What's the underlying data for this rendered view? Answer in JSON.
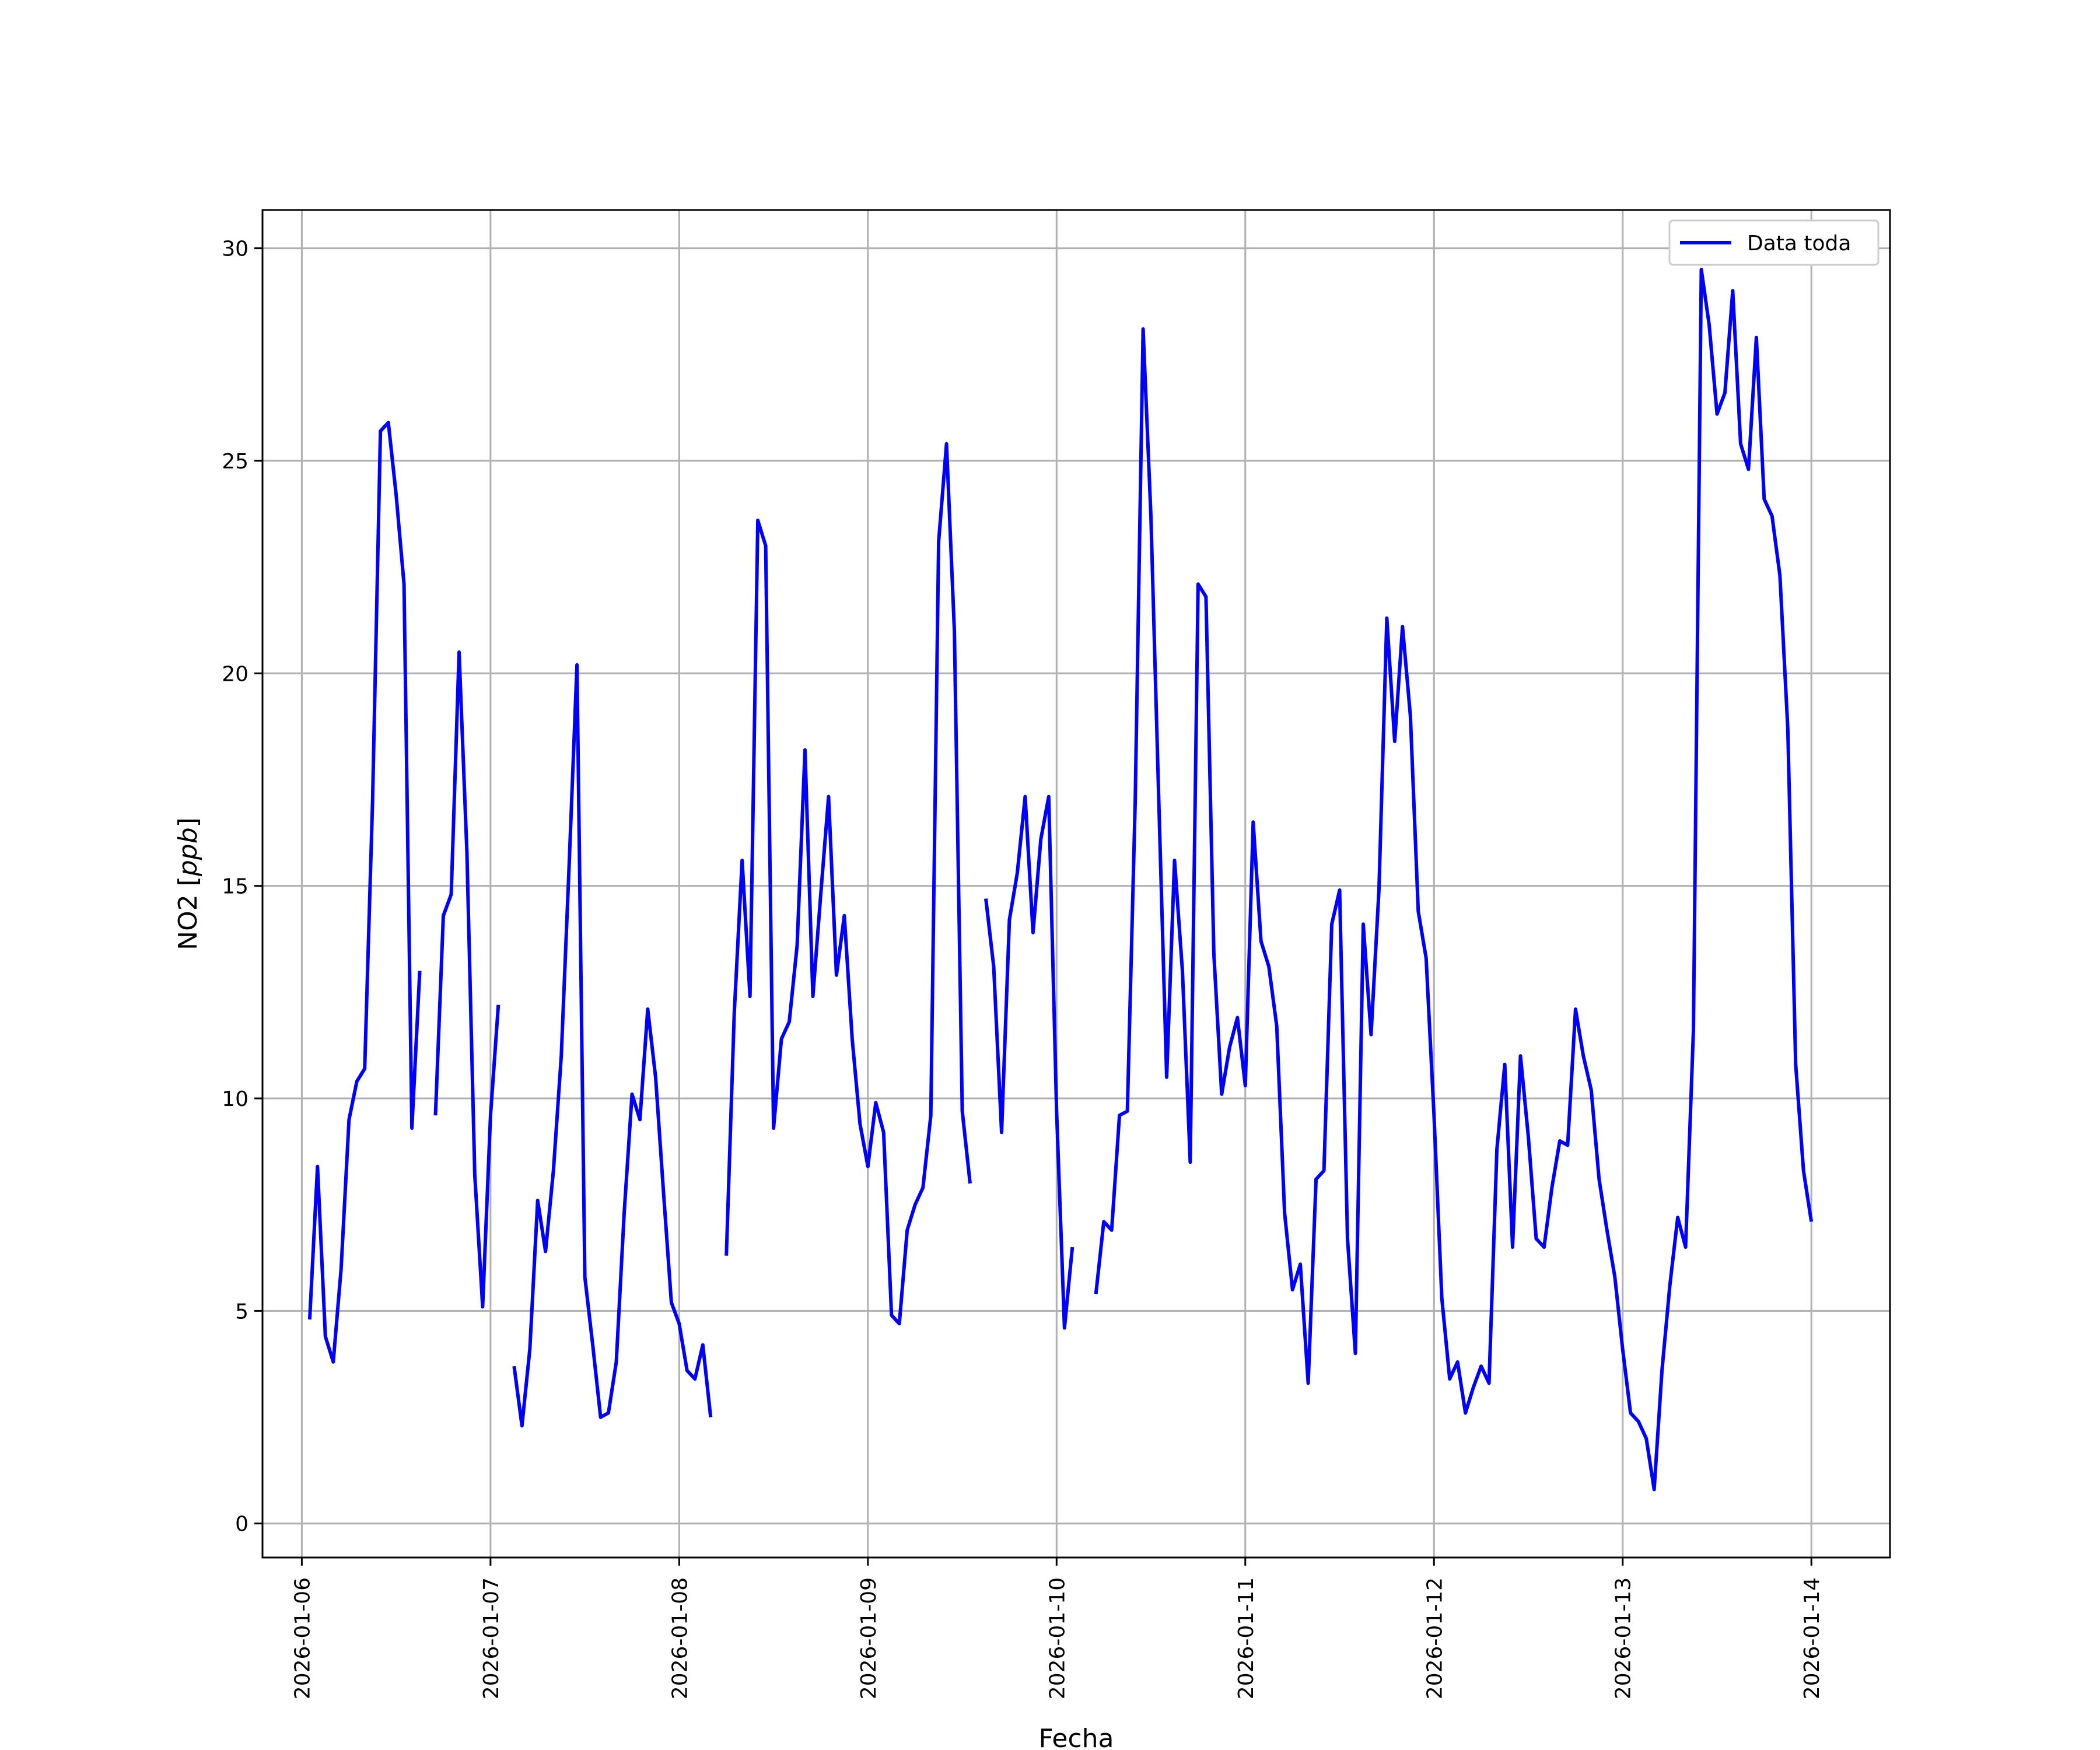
{
  "chart_data": {
    "type": "line",
    "xlabel": "Fecha",
    "ylabel_main": "NO2 [",
    "ylabel_unit": "ppb",
    "ylabel_close": "]",
    "ylim": [
      -0.8,
      30.9
    ],
    "yticks": [
      0,
      5,
      10,
      15,
      20,
      25,
      30
    ],
    "ytick_labels": [
      "0",
      "5",
      "10",
      "15",
      "20",
      "25",
      "30"
    ],
    "xlim": [
      "2026-01-05T19:00",
      "2026-01-14T10:00"
    ],
    "xticks": [
      "2026-01-06",
      "2026-01-07",
      "2026-01-08",
      "2026-01-09",
      "2026-01-10",
      "2026-01-11",
      "2026-01-12",
      "2026-01-13",
      "2026-01-14"
    ],
    "grid": true,
    "legend_position": "top-right",
    "series": [
      {
        "name": "Data toda",
        "color": "#0000ff",
        "segments": [
          [
            [
              "2026-01-06T01:00",
              4.8
            ],
            [
              "2026-01-06T02:00",
              8.4
            ],
            [
              "2026-01-06T03:00",
              4.4
            ],
            [
              "2026-01-06T04:00",
              3.8
            ],
            [
              "2026-01-06T05:00",
              6.0
            ],
            [
              "2026-01-06T06:00",
              9.5
            ],
            [
              "2026-01-06T07:00",
              10.4
            ],
            [
              "2026-01-06T08:00",
              10.7
            ],
            [
              "2026-01-06T09:00",
              17.0
            ],
            [
              "2026-01-06T10:00",
              25.7
            ],
            [
              "2026-01-06T11:00",
              25.9
            ],
            [
              "2026-01-06T12:00",
              24.2
            ],
            [
              "2026-01-06T13:00",
              22.1
            ],
            [
              "2026-01-06T14:00",
              9.3
            ],
            [
              "2026-01-06T15:00",
              13.0
            ]
          ],
          [
            [
              "2026-01-06T17:00",
              9.6
            ],
            [
              "2026-01-06T18:00",
              14.3
            ],
            [
              "2026-01-06T19:00",
              14.8
            ],
            [
              "2026-01-06T20:00",
              20.5
            ],
            [
              "2026-01-06T21:00",
              15.8
            ],
            [
              "2026-01-06T22:00",
              8.2
            ],
            [
              "2026-01-06T23:00",
              5.1
            ],
            [
              "2026-01-07T00:00",
              9.6
            ],
            [
              "2026-01-07T01:00",
              12.2
            ]
          ],
          [
            [
              "2026-01-07T03:00",
              3.7
            ],
            [
              "2026-01-07T04:00",
              2.3
            ],
            [
              "2026-01-07T05:00",
              4.1
            ],
            [
              "2026-01-07T06:00",
              7.6
            ],
            [
              "2026-01-07T07:00",
              6.4
            ],
            [
              "2026-01-07T08:00",
              8.3
            ],
            [
              "2026-01-07T09:00",
              11.0
            ],
            [
              "2026-01-07T10:00",
              15.5
            ],
            [
              "2026-01-07T11:00",
              20.2
            ],
            [
              "2026-01-07T12:00",
              5.8
            ],
            [
              "2026-01-07T13:00",
              4.2
            ],
            [
              "2026-01-07T14:00",
              2.5
            ],
            [
              "2026-01-07T15:00",
              2.6
            ],
            [
              "2026-01-07T16:00",
              3.8
            ],
            [
              "2026-01-07T17:00",
              7.3
            ],
            [
              "2026-01-07T18:00",
              10.1
            ],
            [
              "2026-01-07T19:00",
              9.5
            ],
            [
              "2026-01-07T20:00",
              12.1
            ],
            [
              "2026-01-07T21:00",
              10.5
            ],
            [
              "2026-01-07T22:00",
              7.8
            ],
            [
              "2026-01-07T23:00",
              5.2
            ],
            [
              "2026-01-08T00:00",
              4.7
            ],
            [
              "2026-01-08T01:00",
              3.6
            ],
            [
              "2026-01-08T02:00",
              3.4
            ],
            [
              "2026-01-08T03:00",
              4.2
            ],
            [
              "2026-01-08T04:00",
              2.5
            ]
          ],
          [
            [
              "2026-01-08T06:00",
              6.3
            ],
            [
              "2026-01-08T07:00",
              12.0
            ],
            [
              "2026-01-08T08:00",
              15.6
            ],
            [
              "2026-01-08T09:00",
              12.4
            ],
            [
              "2026-01-08T10:00",
              23.6
            ],
            [
              "2026-01-08T11:00",
              23.0
            ],
            [
              "2026-01-08T12:00",
              9.3
            ],
            [
              "2026-01-08T13:00",
              11.4
            ],
            [
              "2026-01-08T14:00",
              11.8
            ],
            [
              "2026-01-08T15:00",
              13.6
            ],
            [
              "2026-01-08T16:00",
              18.2
            ],
            [
              "2026-01-08T17:00",
              12.4
            ],
            [
              "2026-01-08T18:00",
              14.8
            ],
            [
              "2026-01-08T19:00",
              17.1
            ],
            [
              "2026-01-08T20:00",
              12.9
            ],
            [
              "2026-01-08T21:00",
              14.3
            ],
            [
              "2026-01-08T22:00",
              11.4
            ],
            [
              "2026-01-08T23:00",
              9.4
            ],
            [
              "2026-01-09T00:00",
              8.4
            ],
            [
              "2026-01-09T01:00",
              9.9
            ],
            [
              "2026-01-09T02:00",
              9.2
            ],
            [
              "2026-01-09T03:00",
              4.9
            ],
            [
              "2026-01-09T04:00",
              4.7
            ],
            [
              "2026-01-09T05:00",
              6.9
            ],
            [
              "2026-01-09T06:00",
              7.5
            ],
            [
              "2026-01-09T07:00",
              7.9
            ],
            [
              "2026-01-09T08:00",
              9.6
            ],
            [
              "2026-01-09T09:00",
              23.1
            ],
            [
              "2026-01-09T10:00",
              25.4
            ],
            [
              "2026-01-09T11:00",
              21.0
            ],
            [
              "2026-01-09T12:00",
              9.7
            ],
            [
              "2026-01-09T13:00",
              8.0
            ]
          ],
          [
            [
              "2026-01-09T15:00",
              14.7
            ],
            [
              "2026-01-09T16:00",
              13.1
            ],
            [
              "2026-01-09T17:00",
              9.2
            ],
            [
              "2026-01-09T18:00",
              14.2
            ],
            [
              "2026-01-09T19:00",
              15.3
            ],
            [
              "2026-01-09T20:00",
              17.1
            ],
            [
              "2026-01-09T21:00",
              13.9
            ],
            [
              "2026-01-09T22:00",
              16.1
            ],
            [
              "2026-01-09T23:00",
              17.1
            ],
            [
              "2026-01-10T00:00",
              9.7
            ],
            [
              "2026-01-10T01:00",
              4.6
            ],
            [
              "2026-01-10T02:00",
              6.5
            ]
          ],
          [
            [
              "2026-01-10T05:00",
              5.4
            ],
            [
              "2026-01-10T06:00",
              7.1
            ],
            [
              "2026-01-10T07:00",
              6.9
            ],
            [
              "2026-01-10T08:00",
              9.6
            ],
            [
              "2026-01-10T09:00",
              9.7
            ],
            [
              "2026-01-10T10:00",
              17.0
            ],
            [
              "2026-01-10T11:00",
              28.1
            ],
            [
              "2026-01-10T12:00",
              23.7
            ],
            [
              "2026-01-10T13:00",
              17.0
            ],
            [
              "2026-01-10T14:00",
              10.5
            ],
            [
              "2026-01-10T15:00",
              15.6
            ],
            [
              "2026-01-10T16:00",
              13.0
            ],
            [
              "2026-01-10T17:00",
              8.5
            ],
            [
              "2026-01-10T18:00",
              22.1
            ],
            [
              "2026-01-10T19:00",
              21.8
            ],
            [
              "2026-01-10T20:00",
              13.4
            ],
            [
              "2026-01-10T21:00",
              10.1
            ],
            [
              "2026-01-10T22:00",
              11.2
            ],
            [
              "2026-01-10T23:00",
              11.9
            ],
            [
              "2026-01-11T00:00",
              10.3
            ],
            [
              "2026-01-11T01:00",
              16.5
            ],
            [
              "2026-01-11T02:00",
              13.7
            ],
            [
              "2026-01-11T03:00",
              13.1
            ],
            [
              "2026-01-11T04:00",
              11.7
            ],
            [
              "2026-01-11T05:00",
              7.3
            ],
            [
              "2026-01-11T06:00",
              5.5
            ],
            [
              "2026-01-11T07:00",
              6.1
            ],
            [
              "2026-01-11T08:00",
              3.3
            ],
            [
              "2026-01-11T09:00",
              8.1
            ],
            [
              "2026-01-11T10:00",
              8.3
            ],
            [
              "2026-01-11T11:00",
              14.1
            ],
            [
              "2026-01-11T12:00",
              14.9
            ],
            [
              "2026-01-11T13:00",
              6.7
            ],
            [
              "2026-01-11T14:00",
              4.0
            ],
            [
              "2026-01-11T15:00",
              14.1
            ],
            [
              "2026-01-11T16:00",
              11.5
            ],
            [
              "2026-01-11T17:00",
              14.9
            ],
            [
              "2026-01-11T18:00",
              21.3
            ],
            [
              "2026-01-11T19:00",
              18.4
            ],
            [
              "2026-01-11T20:00",
              21.1
            ],
            [
              "2026-01-11T21:00",
              19.0
            ],
            [
              "2026-01-11T22:00",
              14.4
            ],
            [
              "2026-01-11T23:00",
              13.3
            ],
            [
              "2026-01-12T00:00",
              9.6
            ],
            [
              "2026-01-12T01:00",
              5.3
            ],
            [
              "2026-01-12T02:00",
              3.4
            ],
            [
              "2026-01-12T03:00",
              3.8
            ],
            [
              "2026-01-12T04:00",
              2.6
            ],
            [
              "2026-01-12T05:00",
              3.2
            ],
            [
              "2026-01-12T06:00",
              3.7
            ],
            [
              "2026-01-12T07:00",
              3.3
            ],
            [
              "2026-01-12T08:00",
              8.8
            ],
            [
              "2026-01-12T09:00",
              10.8
            ],
            [
              "2026-01-12T10:00",
              6.5
            ],
            [
              "2026-01-12T11:00",
              11.0
            ],
            [
              "2026-01-12T12:00",
              9.1
            ],
            [
              "2026-01-12T13:00",
              6.7
            ],
            [
              "2026-01-12T14:00",
              6.5
            ],
            [
              "2026-01-12T15:00",
              7.9
            ],
            [
              "2026-01-12T16:00",
              9.0
            ],
            [
              "2026-01-12T17:00",
              8.9
            ],
            [
              "2026-01-12T18:00",
              12.1
            ],
            [
              "2026-01-12T19:00",
              11.0
            ],
            [
              "2026-01-12T20:00",
              10.2
            ],
            [
              "2026-01-12T21:00",
              8.1
            ],
            [
              "2026-01-12T22:00",
              6.9
            ],
            [
              "2026-01-12T23:00",
              5.8
            ],
            [
              "2026-01-13T00:00",
              4.1
            ],
            [
              "2026-01-13T01:00",
              2.6
            ],
            [
              "2026-01-13T02:00",
              2.4
            ],
            [
              "2026-01-13T03:00",
              2.0
            ],
            [
              "2026-01-13T04:00",
              0.8
            ],
            [
              "2026-01-13T05:00",
              3.6
            ],
            [
              "2026-01-13T06:00",
              5.6
            ],
            [
              "2026-01-13T07:00",
              7.2
            ],
            [
              "2026-01-13T08:00",
              6.5
            ],
            [
              "2026-01-13T09:00",
              11.6
            ],
            [
              "2026-01-13T10:00",
              29.5
            ],
            [
              "2026-01-13T11:00",
              28.2
            ],
            [
              "2026-01-13T12:00",
              26.1
            ],
            [
              "2026-01-13T13:00",
              26.6
            ],
            [
              "2026-01-13T14:00",
              29.0
            ],
            [
              "2026-01-13T15:00",
              25.4
            ],
            [
              "2026-01-13T16:00",
              24.8
            ],
            [
              "2026-01-13T17:00",
              27.9
            ],
            [
              "2026-01-13T18:00",
              24.1
            ],
            [
              "2026-01-13T19:00",
              23.7
            ],
            [
              "2026-01-13T20:00",
              22.3
            ],
            [
              "2026-01-13T21:00",
              18.7
            ],
            [
              "2026-01-13T22:00",
              10.8
            ],
            [
              "2026-01-13T23:00",
              8.3
            ],
            [
              "2026-01-14T00:00",
              7.1
            ]
          ]
        ]
      }
    ]
  }
}
